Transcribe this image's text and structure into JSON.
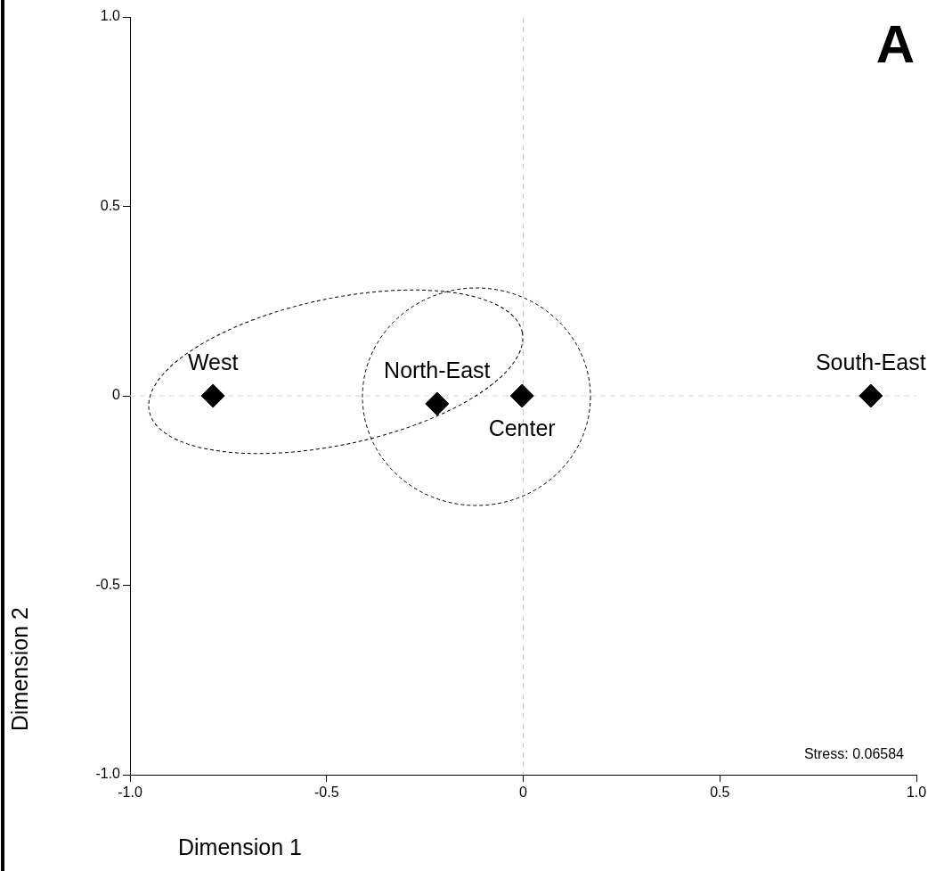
{
  "chart_data": {
    "type": "scatter",
    "title": "A",
    "xlabel": "Dimension 1",
    "ylabel": "Dimension 2",
    "x": [
      -0.789,
      -0.219,
      -0.003,
      0.884
    ],
    "series": [
      {
        "color": "#000000",
        "values": [
          0,
          -0.021,
          0,
          0
        ]
      }
    ],
    "marker": "diamond",
    "grid": false,
    "legend": false,
    "xlim": [
      -1,
      1
    ],
    "ylim": [
      -1,
      1
    ],
    "xticks": [
      {
        "value": -1,
        "label": "-1.0"
      },
      -0.5,
      0,
      0.5,
      {
        "value": 1,
        "label": "1.0"
      }
    ],
    "yticks": [
      {
        "value": -1,
        "label": "-1.0"
      },
      -0.5,
      0,
      0.5,
      {
        "value": 1,
        "label": "1.0"
      }
    ],
    "ref_lines": [
      {
        "axis": "x",
        "value": 0,
        "color": "#cccccc",
        "line_style": "dashed"
      },
      {
        "axis": "y",
        "value": 0,
        "color": "#d6d6d6",
        "line_style": "dashed"
      }
    ],
    "annotations": [
      {
        "text": "West",
        "x": -0.789,
        "y": 0
      },
      {
        "text": "North-East",
        "x": -0.219,
        "y": -0.021
      },
      {
        "text": "Center",
        "x": -0.003,
        "y": 0
      },
      {
        "text": "South-East",
        "x": 0.884,
        "y": 0
      },
      "Stress: 0.06584"
    ]
  }
}
